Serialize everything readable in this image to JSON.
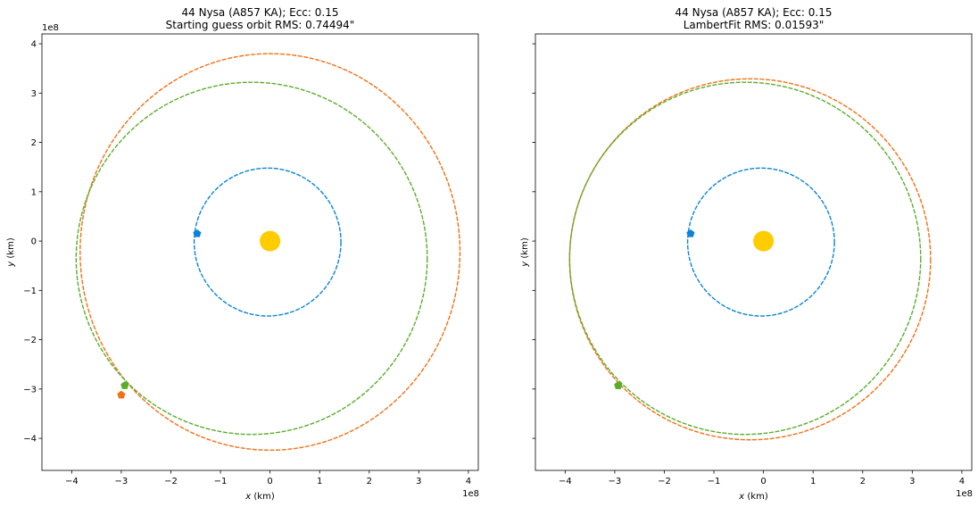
{
  "chart_data": [
    {
      "type": "scatter",
      "title": "44 Nysa (A857 KA); Ecc: 0.15",
      "subtitle": "Starting guess orbit RMS: 0.74494\"",
      "xlabel_var": "x",
      "xlabel_unit": " (km)",
      "ylabel_var": "y",
      "ylabel_unit": " (km)",
      "offset_label": "1e8",
      "x_offset_label": "1e8",
      "xlim": [
        -4.6,
        4.2
      ],
      "ylim": [
        -4.65,
        4.2
      ],
      "xticks": [
        -4,
        -3,
        -2,
        -1,
        0,
        1,
        2,
        3,
        4
      ],
      "yticks": [
        -4,
        -3,
        -2,
        -1,
        0,
        1,
        2,
        3,
        4
      ],
      "xtick_labels": [
        "−4",
        "−3",
        "−2",
        "−1",
        "0",
        "1",
        "2",
        "3",
        "4"
      ],
      "ytick_labels": [
        "−4",
        "−3",
        "−2",
        "−1",
        "0",
        "1",
        "2",
        "3",
        "4"
      ],
      "show_ytick_labels": true,
      "sun": {
        "x": 0,
        "y": 0,
        "color": "#ffcc00"
      },
      "orbits": [
        {
          "color": "#0b84d8",
          "cx": -0.05,
          "cy": -0.02,
          "rx": 1.48,
          "ry": 1.5,
          "marker": {
            "x": -1.47,
            "y": 0.15
          }
        },
        {
          "color": "#f36f13",
          "cx": 0.0,
          "cy": -0.22,
          "rx": 3.83,
          "ry": 4.02,
          "marker": {
            "x": -3.0,
            "y": -3.12
          }
        },
        {
          "color": "#5aad2b",
          "cx": -0.37,
          "cy": -0.35,
          "rx": 3.54,
          "ry": 3.57,
          "marker": {
            "x": -2.93,
            "y": -2.93
          }
        }
      ]
    },
    {
      "type": "scatter",
      "title": "44 Nysa (A857 KA); Ecc: 0.15",
      "subtitle": "LambertFit RMS: 0.01593\"",
      "xlabel_var": "x",
      "xlabel_unit": " (km)",
      "ylabel_var": "y",
      "ylabel_unit": " (km)",
      "x_offset_label": "1e8",
      "xlim": [
        -4.6,
        4.2
      ],
      "ylim": [
        -4.65,
        4.2
      ],
      "xticks": [
        -4,
        -3,
        -2,
        -1,
        0,
        1,
        2,
        3,
        4
      ],
      "yticks": [
        -4,
        -3,
        -2,
        -1,
        0,
        1,
        2,
        3,
        4
      ],
      "xtick_labels": [
        "−4",
        "−3",
        "−2",
        "−1",
        "0",
        "1",
        "2",
        "3",
        "4"
      ],
      "show_ytick_labels": false,
      "sun": {
        "x": 0,
        "y": 0,
        "color": "#ffcc00"
      },
      "orbits": [
        {
          "color": "#0b84d8",
          "cx": -0.05,
          "cy": -0.02,
          "rx": 1.48,
          "ry": 1.5,
          "marker": {
            "x": -1.47,
            "y": 0.15
          }
        },
        {
          "color": "#f36f13",
          "cx": -0.27,
          "cy": -0.37,
          "rx": 3.64,
          "ry": 3.66,
          "marker": {
            "x": -2.93,
            "y": -2.93
          }
        },
        {
          "color": "#5aad2b",
          "cx": -0.37,
          "cy": -0.35,
          "rx": 3.54,
          "ry": 3.57,
          "marker": {
            "x": -2.93,
            "y": -2.93
          }
        }
      ]
    }
  ]
}
